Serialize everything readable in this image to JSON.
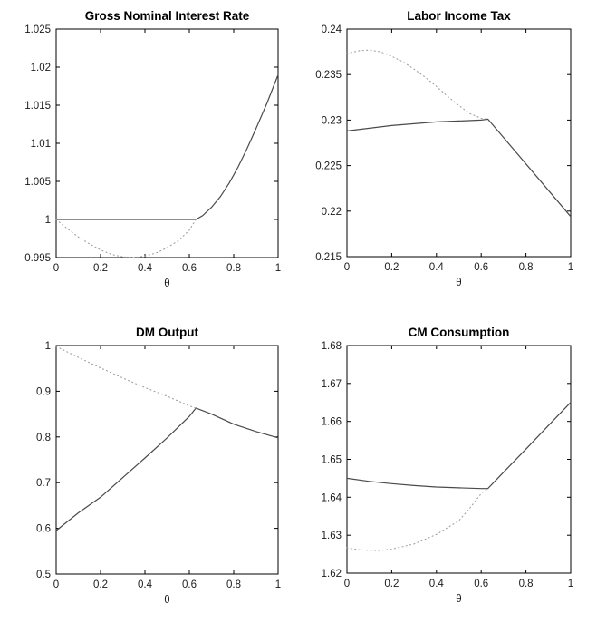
{
  "figure": {
    "background": "#ffffff",
    "axis_color": "#000000",
    "solid_line_color": "#4a4a4a",
    "dotted_line_color": "#9e9e9e",
    "legend": "none",
    "grid": "off"
  },
  "chart_data": [
    {
      "type": "line",
      "title": "Gross Nominal Interest Rate",
      "xlabel": "θ",
      "ylabel": "",
      "xlim": [
        0,
        1
      ],
      "ylim": [
        0.995,
        1.025
      ],
      "xticks": [
        0,
        0.2,
        0.4,
        0.6,
        0.8,
        1
      ],
      "xtick_labels": [
        "0",
        "0.2",
        "0.4",
        "0.6",
        "0.8",
        "1"
      ],
      "yticks": [
        0.995,
        1,
        1.005,
        1.01,
        1.015,
        1.02,
        1.025
      ],
      "ytick_labels": [
        "0.995",
        "1",
        "1.005",
        "1.01",
        "1.015",
        "1.02",
        "1.025"
      ],
      "series": [
        {
          "name": "solid-line",
          "style": "solid",
          "color": "#4a4a4a",
          "x": [
            0,
            0.63,
            0.66,
            0.7,
            0.74,
            0.78,
            0.82,
            0.86,
            0.9,
            0.95,
            1
          ],
          "y": [
            1.0,
            1.0,
            1.0005,
            1.0016,
            1.003,
            1.0048,
            1.0069,
            1.0093,
            1.0119,
            1.0153,
            1.019
          ]
        },
        {
          "name": "dotted-line",
          "style": "dotted",
          "color": "#9e9e9e",
          "x": [
            0,
            0.05,
            0.1,
            0.15,
            0.2,
            0.25,
            0.3,
            0.35,
            0.4,
            0.45,
            0.5,
            0.55,
            0.6,
            0.63
          ],
          "y": [
            1.0,
            0.9988,
            0.9977,
            0.9968,
            0.996,
            0.9954,
            0.9951,
            0.995,
            0.9952,
            0.9956,
            0.9963,
            0.9972,
            0.9986,
            1.0
          ]
        }
      ]
    },
    {
      "type": "line",
      "title": "Labor Income Tax",
      "xlabel": "θ",
      "ylabel": "",
      "xlim": [
        0,
        1
      ],
      "ylim": [
        0.215,
        0.24
      ],
      "xticks": [
        0,
        0.2,
        0.4,
        0.6,
        0.8,
        1
      ],
      "xtick_labels": [
        "0",
        "0.2",
        "0.4",
        "0.6",
        "0.8",
        "1"
      ],
      "yticks": [
        0.215,
        0.22,
        0.225,
        0.23,
        0.235,
        0.24
      ],
      "ytick_labels": [
        "0.215",
        "0.22",
        "0.225",
        "0.23",
        "0.235",
        "0.24"
      ],
      "series": [
        {
          "name": "solid-line",
          "style": "solid",
          "color": "#4a4a4a",
          "x": [
            0,
            0.1,
            0.2,
            0.3,
            0.4,
            0.5,
            0.6,
            0.63,
            1
          ],
          "y": [
            0.2288,
            0.2291,
            0.2294,
            0.2296,
            0.2298,
            0.2299,
            0.23,
            0.2301,
            0.2194
          ]
        },
        {
          "name": "dotted-line",
          "style": "dotted",
          "color": "#9e9e9e",
          "x": [
            0,
            0.05,
            0.1,
            0.15,
            0.2,
            0.25,
            0.3,
            0.35,
            0.4,
            0.45,
            0.5,
            0.55,
            0.6,
            0.63
          ],
          "y": [
            0.2373,
            0.2376,
            0.2377,
            0.2375,
            0.237,
            0.2364,
            0.2356,
            0.2347,
            0.2337,
            0.2326,
            0.2316,
            0.2307,
            0.2302,
            0.2301
          ]
        }
      ]
    },
    {
      "type": "line",
      "title": "DM Output",
      "xlabel": "θ",
      "ylabel": "",
      "xlim": [
        0,
        1
      ],
      "ylim": [
        0.5,
        1
      ],
      "xticks": [
        0,
        0.2,
        0.4,
        0.6,
        0.8,
        1
      ],
      "xtick_labels": [
        "0",
        "0.2",
        "0.4",
        "0.6",
        "0.8",
        "1"
      ],
      "yticks": [
        0.5,
        0.6,
        0.7,
        0.8,
        0.9,
        1
      ],
      "ytick_labels": [
        "0.5",
        "0.6",
        "0.7",
        "0.8",
        "0.9",
        "1"
      ],
      "series": [
        {
          "name": "solid-line",
          "style": "solid",
          "color": "#4a4a4a",
          "x": [
            0,
            0.1,
            0.2,
            0.3,
            0.4,
            0.5,
            0.6,
            0.63,
            0.7,
            0.8,
            0.9,
            1
          ],
          "y": [
            0.595,
            0.634,
            0.668,
            0.711,
            0.754,
            0.798,
            0.845,
            0.863,
            0.85,
            0.828,
            0.812,
            0.798
          ]
        },
        {
          "name": "dotted-line",
          "style": "dotted",
          "color": "#9e9e9e",
          "x": [
            0,
            0.1,
            0.2,
            0.3,
            0.4,
            0.5,
            0.6,
            0.63
          ],
          "y": [
            0.998,
            0.974,
            0.951,
            0.929,
            0.908,
            0.889,
            0.868,
            0.863
          ]
        }
      ]
    },
    {
      "type": "line",
      "title": "CM Consumption",
      "xlabel": "θ",
      "ylabel": "",
      "xlim": [
        0,
        1
      ],
      "ylim": [
        1.62,
        1.68
      ],
      "xticks": [
        0,
        0.2,
        0.4,
        0.6,
        0.8,
        1
      ],
      "xtick_labels": [
        "0",
        "0.2",
        "0.4",
        "0.6",
        "0.8",
        "1"
      ],
      "yticks": [
        1.62,
        1.63,
        1.64,
        1.65,
        1.66,
        1.67,
        1.68
      ],
      "ytick_labels": [
        "1.62",
        "1.63",
        "1.64",
        "1.65",
        "1.66",
        "1.67",
        "1.68"
      ],
      "series": [
        {
          "name": "solid-line",
          "style": "solid",
          "color": "#4a4a4a",
          "x": [
            0,
            0.1,
            0.2,
            0.3,
            0.4,
            0.5,
            0.6,
            0.63,
            0.7,
            0.8,
            0.9,
            1
          ],
          "y": [
            1.645,
            1.6442,
            1.6436,
            1.6431,
            1.6427,
            1.6425,
            1.6423,
            1.6423,
            1.6466,
            1.6527,
            1.6589,
            1.665
          ]
        },
        {
          "name": "dotted-line",
          "style": "dotted",
          "color": "#9e9e9e",
          "x": [
            0,
            0.05,
            0.1,
            0.15,
            0.2,
            0.3,
            0.4,
            0.5,
            0.55,
            0.6,
            0.63
          ],
          "y": [
            1.6267,
            1.6262,
            1.626,
            1.626,
            1.6263,
            1.6277,
            1.6302,
            1.6338,
            1.6372,
            1.641,
            1.6423
          ]
        }
      ]
    }
  ]
}
